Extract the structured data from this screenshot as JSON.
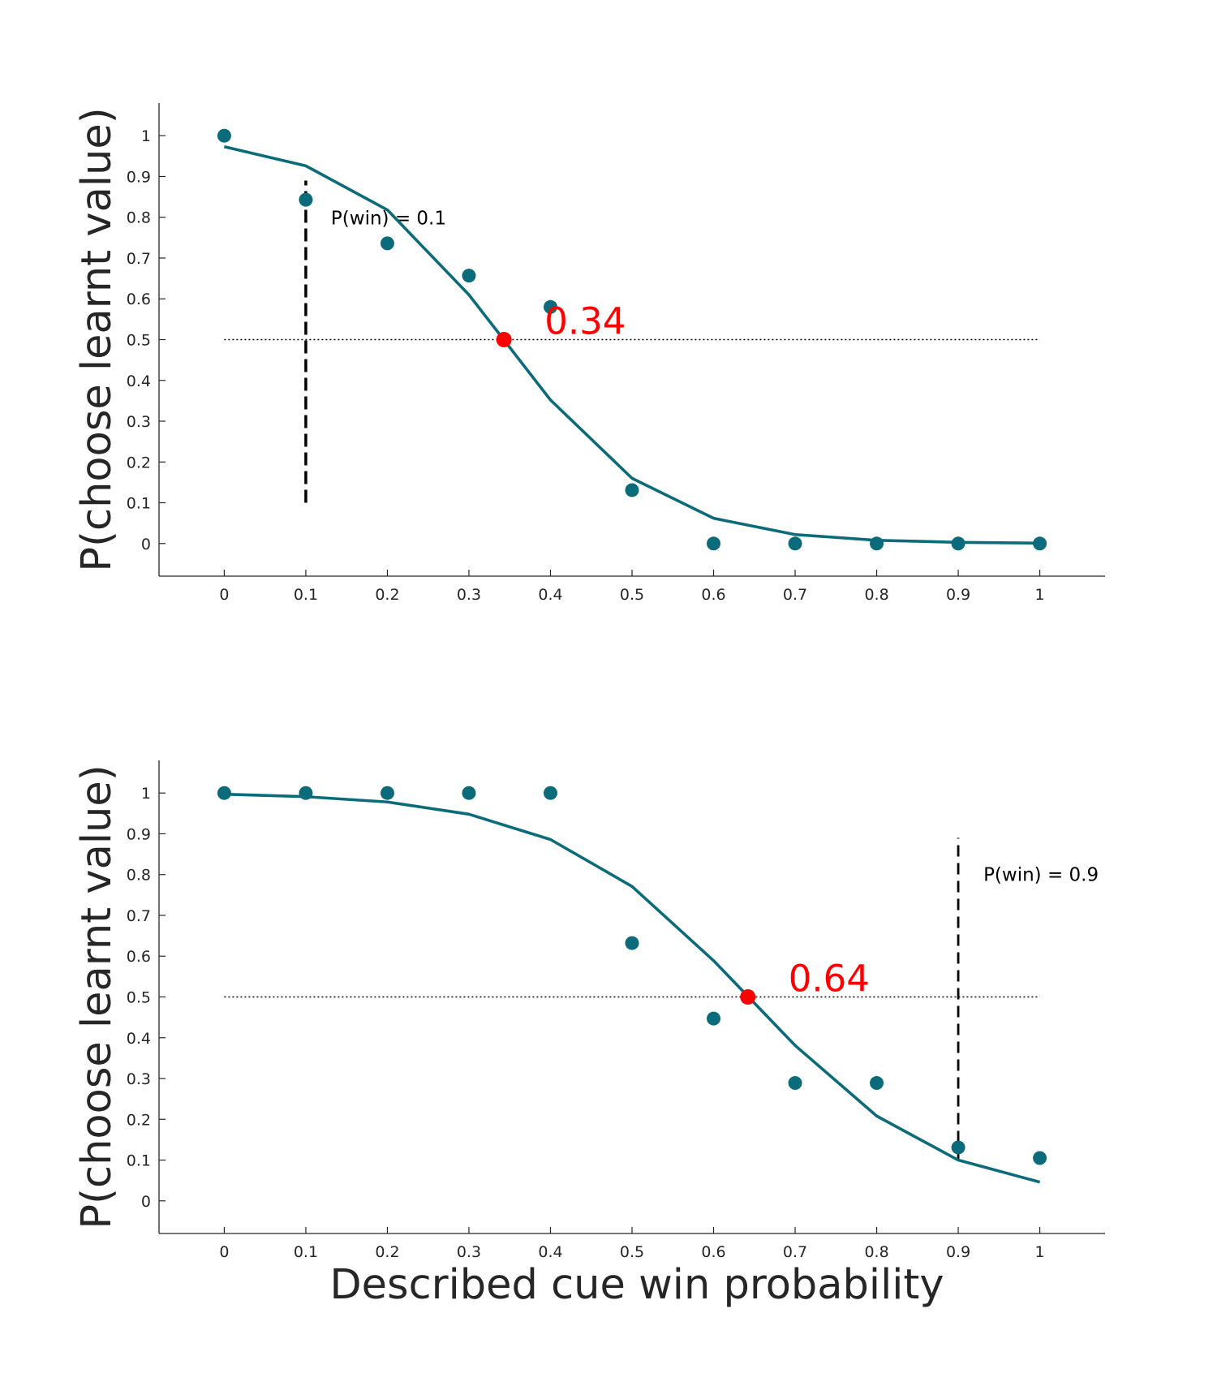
{
  "colors": {
    "series": "#0b6b7b",
    "crossover": "#ff0000",
    "axis": "#262626",
    "reference": "#000000"
  },
  "xlabel": "Described cue win probability",
  "chart_data": [
    {
      "type": "scatter",
      "xlabel": "",
      "ylabel": "P(choose learnt value)",
      "xlim": [
        -0.08,
        1.08
      ],
      "ylim": [
        -0.08,
        1.08
      ],
      "xticks": [
        "0",
        "0.1",
        "0.2",
        "0.3",
        "0.4",
        "0.5",
        "0.6",
        "0.7",
        "0.8",
        "0.9",
        "1"
      ],
      "yticks": [
        "0",
        "0.1",
        "0.2",
        "0.3",
        "0.4",
        "0.5",
        "0.6",
        "0.7",
        "0.8",
        "0.9",
        "1"
      ],
      "observed": {
        "x": [
          0,
          0.1,
          0.2,
          0.3,
          0.4,
          0.5,
          0.6,
          0.7,
          0.8,
          0.9,
          1
        ],
        "y": [
          1.0,
          0.843,
          0.736,
          0.657,
          0.58,
          0.131,
          0.0,
          0.0,
          0.0,
          0.0,
          0.0
        ]
      },
      "fit": {
        "x": [
          0,
          0.1,
          0.2,
          0.3,
          0.4,
          0.5,
          0.6,
          0.7,
          0.8,
          0.9,
          1
        ],
        "y": [
          0.973,
          0.926,
          0.818,
          0.61,
          0.352,
          0.16,
          0.062,
          0.022,
          0.008,
          0.003,
          0.001
        ]
      },
      "reference_line": {
        "y": 0.5,
        "x_from": 0,
        "x_to": 1,
        "style": "dotted"
      },
      "marker_line": {
        "x": 0.1,
        "y_from": 0.1,
        "y_to": 0.89,
        "style": "dashed",
        "label": "P(win) = 0.1"
      },
      "crossover": {
        "x": 0.343,
        "y": 0.5,
        "label": "0.34"
      }
    },
    {
      "type": "scatter",
      "xlabel": "Described cue win probability",
      "ylabel": "P(choose learnt value)",
      "xlim": [
        -0.08,
        1.08
      ],
      "ylim": [
        -0.08,
        1.08
      ],
      "xticks": [
        "0",
        "0.1",
        "0.2",
        "0.3",
        "0.4",
        "0.5",
        "0.6",
        "0.7",
        "0.8",
        "0.9",
        "1"
      ],
      "yticks": [
        "0",
        "0.1",
        "0.2",
        "0.3",
        "0.4",
        "0.5",
        "0.6",
        "0.7",
        "0.8",
        "0.9",
        "1"
      ],
      "observed": {
        "x": [
          0,
          0.1,
          0.2,
          0.3,
          0.4,
          0.5,
          0.6,
          0.7,
          0.8,
          0.9,
          1
        ],
        "y": [
          1.0,
          1.0,
          1.0,
          1.0,
          1.0,
          0.632,
          0.447,
          0.289,
          0.289,
          0.131,
          0.105
        ]
      },
      "fit": {
        "x": [
          0,
          0.1,
          0.2,
          0.3,
          0.4,
          0.5,
          0.6,
          0.7,
          0.8,
          0.9,
          1
        ],
        "y": [
          0.997,
          0.991,
          0.978,
          0.948,
          0.886,
          0.771,
          0.589,
          0.381,
          0.208,
          0.1,
          0.046
        ]
      },
      "reference_line": {
        "y": 0.5,
        "x_from": 0,
        "x_to": 1,
        "style": "dotted"
      },
      "marker_line": {
        "x": 0.9,
        "y_from": 0.1,
        "y_to": 0.89,
        "style": "dashed",
        "label": "P(win) = 0.9"
      },
      "crossover": {
        "x": 0.642,
        "y": 0.5,
        "label": "0.64"
      }
    }
  ]
}
